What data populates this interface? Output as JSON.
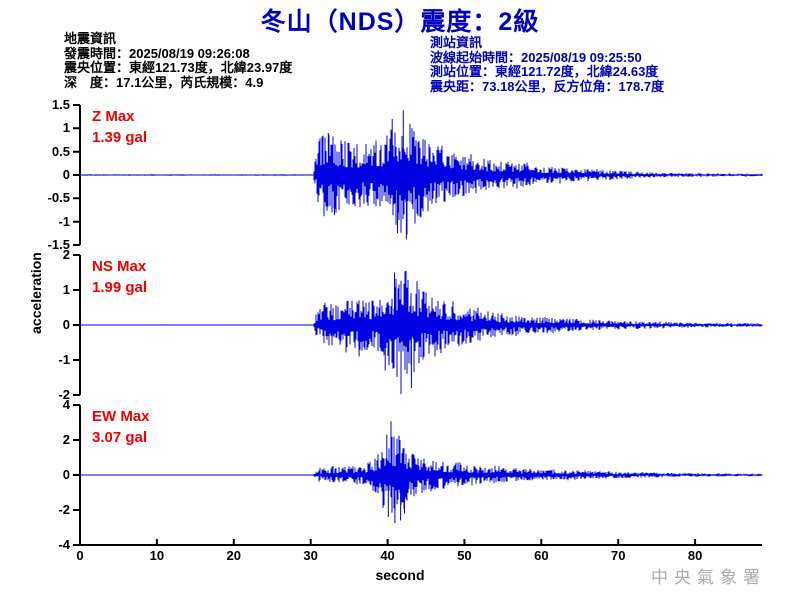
{
  "title": "冬山（NDS）震度：2級",
  "colors": {
    "title_blue": "#0000BE",
    "station_info_blue": "#0000BB",
    "trace_blue": "#0000E0",
    "max_label_red": "#F40000",
    "axis_black": "#000000",
    "watermark_gray": "#ACACAC"
  },
  "event_info": {
    "heading": "地震資訊",
    "lines": [
      "發震時間：2025/08/19 09:26:08",
      "震央位置：東經121.73度，北緯23.97度",
      "深　度：17.1公里，芮氏規模：4.9"
    ]
  },
  "station_info": {
    "heading": "測站資訊",
    "lines": [
      "波線起始時間：2025/08/19 09:25:50",
      "測站位置：東經121.72度，北緯24.63度",
      "震央距：73.18公里，反方位角：178.7度"
    ]
  },
  "ylabel": "acceleration",
  "xaxis": {
    "label": "second",
    "ticks": [
      "0",
      "10",
      "20",
      "30",
      "40",
      "50",
      "60",
      "70",
      "80"
    ],
    "xlim": [
      0,
      88.7
    ]
  },
  "watermark": "中央氣象署",
  "chart_data": [
    {
      "type": "line",
      "channel": "Z",
      "max_label": "Z Max",
      "max_value": "1.39 gal",
      "max_gal": 1.39,
      "ylim": [
        -1.5,
        1.5
      ],
      "yticks": [
        "1.5",
        "1",
        "0.5",
        "0",
        "-0.5",
        "-1",
        "-1.5"
      ],
      "onset_s": 30.3,
      "envelope": [
        [
          0,
          0.015
        ],
        [
          30.3,
          0.015
        ],
        [
          30.8,
          0.45
        ],
        [
          31.3,
          0.9
        ],
        [
          33.5,
          0.85
        ],
        [
          35,
          0.7
        ],
        [
          37,
          0.65
        ],
        [
          39,
          0.8
        ],
        [
          40.5,
          1.0
        ],
        [
          42.2,
          1.45
        ],
        [
          43.2,
          1.1
        ],
        [
          44.5,
          0.9
        ],
        [
          46,
          0.7
        ],
        [
          48,
          0.55
        ],
        [
          50,
          0.45
        ],
        [
          53,
          0.35
        ],
        [
          56,
          0.28
        ],
        [
          60,
          0.19
        ],
        [
          65,
          0.13
        ],
        [
          70,
          0.09
        ],
        [
          75,
          0.05
        ],
        [
          80,
          0.04
        ],
        [
          88.7,
          0.03
        ]
      ],
      "peaks": [
        [
          42.05,
          1.39
        ],
        [
          42.45,
          -1.38
        ],
        [
          40.6,
          1.2
        ],
        [
          41.3,
          -1.25
        ],
        [
          32.3,
          0.9
        ],
        [
          33.1,
          -0.85
        ]
      ]
    },
    {
      "type": "line",
      "channel": "NS",
      "max_label": "NS Max",
      "max_value": "1.99 gal",
      "max_gal": 1.99,
      "ylim": [
        -2,
        2
      ],
      "yticks": [
        "2",
        "1",
        "0",
        "-1",
        "-2"
      ],
      "onset_s": 30.3,
      "envelope": [
        [
          0,
          0.015
        ],
        [
          30.3,
          0.015
        ],
        [
          30.8,
          0.35
        ],
        [
          31.5,
          0.6
        ],
        [
          33,
          0.6
        ],
        [
          34.5,
          0.8
        ],
        [
          36.5,
          0.75
        ],
        [
          38,
          0.7
        ],
        [
          39.5,
          0.9
        ],
        [
          40.8,
          1.3
        ],
        [
          42,
          1.5
        ],
        [
          43.3,
          1.3
        ],
        [
          44.5,
          1.0
        ],
        [
          46,
          0.8
        ],
        [
          48,
          0.65
        ],
        [
          50,
          0.55
        ],
        [
          53,
          0.4
        ],
        [
          56,
          0.3
        ],
        [
          60,
          0.22
        ],
        [
          65,
          0.17
        ],
        [
          70,
          0.12
        ],
        [
          75,
          0.09
        ],
        [
          80,
          0.07
        ],
        [
          88.7,
          0.05
        ]
      ],
      "peaks": [
        [
          41.75,
          -1.99
        ],
        [
          43.1,
          -1.8
        ],
        [
          42.4,
          1.55
        ],
        [
          40.9,
          1.5
        ],
        [
          39.7,
          -1.3
        ],
        [
          36.3,
          -0.9
        ]
      ]
    },
    {
      "type": "line",
      "channel": "EW",
      "max_label": "EW Max",
      "max_value": "3.07 gal",
      "max_gal": 3.07,
      "ylim": [
        -4,
        4
      ],
      "yticks": [
        "4",
        "2",
        "0",
        "-2",
        "-4"
      ],
      "onset_s": 30.3,
      "envelope": [
        [
          0,
          0.015
        ],
        [
          30.3,
          0.015
        ],
        [
          31,
          0.35
        ],
        [
          33,
          0.45
        ],
        [
          35,
          0.5
        ],
        [
          37,
          0.55
        ],
        [
          38.3,
          0.9
        ],
        [
          39.3,
          1.8
        ],
        [
          40.6,
          2.4
        ],
        [
          41.6,
          2.0
        ],
        [
          42.6,
          1.5
        ],
        [
          44,
          1.1
        ],
        [
          46,
          0.9
        ],
        [
          48,
          0.7
        ],
        [
          50,
          0.6
        ],
        [
          53,
          0.5
        ],
        [
          56,
          0.4
        ],
        [
          60,
          0.3
        ],
        [
          65,
          0.25
        ],
        [
          70,
          0.18
        ],
        [
          75,
          0.13
        ],
        [
          80,
          0.1
        ],
        [
          88.7,
          0.07
        ]
      ],
      "peaks": [
        [
          40.45,
          3.07
        ],
        [
          40.95,
          -2.75
        ],
        [
          41.7,
          -2.6
        ],
        [
          39.9,
          2.3
        ],
        [
          42.2,
          -2.2
        ],
        [
          40.1,
          -2.4
        ]
      ]
    }
  ]
}
